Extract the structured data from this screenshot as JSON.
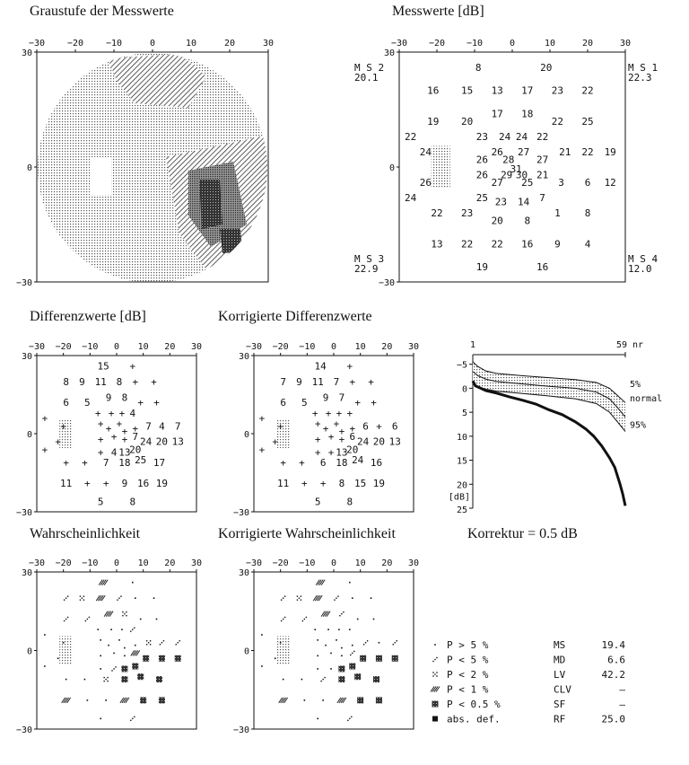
{
  "titles": {
    "grayscale": "Graustufe der Messwerte",
    "values": "Messwerte [dB]",
    "diff": "Differenzwerte [dB]",
    "corr_diff": "Korrigierte Differenzwerte",
    "prob": "Wahrscheinlichkeit",
    "corr_prob": "Korrigierte Wahrscheinlichkeit",
    "korrektur": "Korrektur = 0.5 dB"
  },
  "axis_ticks": [
    "−30",
    "−20",
    "−10",
    "0",
    "10",
    "20",
    "30"
  ],
  "axis_y_ticks": [
    "30",
    "0",
    "−30"
  ],
  "quadrants": {
    "ms1": {
      "label": "M S 1",
      "value": "22.3"
    },
    "ms2": {
      "label": "M S 2",
      "value": "20.1"
    },
    "ms3": {
      "label": "M S 3",
      "value": "22.9"
    },
    "ms4": {
      "label": "M S 4",
      "value": "12.0"
    }
  },
  "measured_values": [
    {
      "x": -9,
      "y": 26,
      "v": "8"
    },
    {
      "x": 9,
      "y": 26,
      "v": "20"
    },
    {
      "x": -21,
      "y": 20,
      "v": "16"
    },
    {
      "x": -12,
      "y": 20,
      "v": "15"
    },
    {
      "x": -4,
      "y": 20,
      "v": "13"
    },
    {
      "x": 4,
      "y": 20,
      "v": "17"
    },
    {
      "x": 12,
      "y": 20,
      "v": "23"
    },
    {
      "x": 20,
      "y": 20,
      "v": "22"
    },
    {
      "x": -21,
      "y": 12,
      "v": "19"
    },
    {
      "x": -12,
      "y": 12,
      "v": "20"
    },
    {
      "x": -4,
      "y": 14,
      "v": "17"
    },
    {
      "x": 4,
      "y": 14,
      "v": "18"
    },
    {
      "x": 12,
      "y": 12,
      "v": "22"
    },
    {
      "x": 20,
      "y": 12,
      "v": "25"
    },
    {
      "x": -27,
      "y": 8,
      "v": "22"
    },
    {
      "x": -8,
      "y": 8,
      "v": "23"
    },
    {
      "x": -2,
      "y": 8,
      "v": "24"
    },
    {
      "x": 2.5,
      "y": 8,
      "v": "24"
    },
    {
      "x": 8,
      "y": 8,
      "v": "22"
    },
    {
      "x": -23,
      "y": 4,
      "v": "24"
    },
    {
      "x": -8,
      "y": 2,
      "v": "26"
    },
    {
      "x": -4,
      "y": 4,
      "v": "26"
    },
    {
      "x": -1,
      "y": 2,
      "v": "28"
    },
    {
      "x": 3,
      "y": 4,
      "v": "27"
    },
    {
      "x": 8,
      "y": 2,
      "v": "27"
    },
    {
      "x": 14,
      "y": 4,
      "v": "21"
    },
    {
      "x": 20,
      "y": 4,
      "v": "22"
    },
    {
      "x": 26,
      "y": 4,
      "v": "19"
    },
    {
      "x": 1,
      "y": -0.5,
      "v": "31"
    },
    {
      "x": -23,
      "y": -4,
      "v": "26"
    },
    {
      "x": -8,
      "y": -2,
      "v": "26"
    },
    {
      "x": -1.5,
      "y": -2,
      "v": "29"
    },
    {
      "x": 2.5,
      "y": -2,
      "v": "30"
    },
    {
      "x": 8,
      "y": -2,
      "v": "21"
    },
    {
      "x": -4,
      "y": -4,
      "v": "27"
    },
    {
      "x": 4,
      "y": -4,
      "v": "25"
    },
    {
      "x": 13,
      "y": -4,
      "v": "3"
    },
    {
      "x": 20,
      "y": -4,
      "v": "6"
    },
    {
      "x": 26,
      "y": -4,
      "v": "12"
    },
    {
      "x": -27,
      "y": -8,
      "v": "24"
    },
    {
      "x": -8,
      "y": -8,
      "v": "25"
    },
    {
      "x": -3,
      "y": -9,
      "v": "23"
    },
    {
      "x": 3,
      "y": -9,
      "v": "14"
    },
    {
      "x": 8,
      "y": -8,
      "v": "7"
    },
    {
      "x": -20,
      "y": -12,
      "v": "22"
    },
    {
      "x": -12,
      "y": -12,
      "v": "23"
    },
    {
      "x": -4,
      "y": -14,
      "v": "20"
    },
    {
      "x": 4,
      "y": -14,
      "v": "8"
    },
    {
      "x": 12,
      "y": -12,
      "v": "1"
    },
    {
      "x": 20,
      "y": -12,
      "v": "8"
    },
    {
      "x": -20,
      "y": -20,
      "v": "13"
    },
    {
      "x": -12,
      "y": -20,
      "v": "22"
    },
    {
      "x": -4,
      "y": -20,
      "v": "22"
    },
    {
      "x": 4,
      "y": -20,
      "v": "16"
    },
    {
      "x": 12,
      "y": -20,
      "v": "9"
    },
    {
      "x": 20,
      "y": -20,
      "v": "4"
    },
    {
      "x": -8,
      "y": -26,
      "v": "19"
    },
    {
      "x": 8,
      "y": -26,
      "v": "16"
    }
  ],
  "diff_values": [
    {
      "x": -5,
      "y": 26,
      "v": "15"
    },
    {
      "x": 6,
      "y": 26,
      "v": "+"
    },
    {
      "x": -19,
      "y": 20,
      "v": "8"
    },
    {
      "x": -13,
      "y": 20,
      "v": "9"
    },
    {
      "x": -6,
      "y": 20,
      "v": "11"
    },
    {
      "x": 1,
      "y": 20,
      "v": "8"
    },
    {
      "x": 7,
      "y": 20,
      "v": "+"
    },
    {
      "x": 14,
      "y": 20,
      "v": "+"
    },
    {
      "x": -19,
      "y": 12,
      "v": "6"
    },
    {
      "x": -11,
      "y": 12,
      "v": "5"
    },
    {
      "x": -3,
      "y": 14,
      "v": "9"
    },
    {
      "x": 3,
      "y": 14,
      "v": "8"
    },
    {
      "x": 9,
      "y": 12,
      "v": "+"
    },
    {
      "x": 15,
      "y": 12,
      "v": "+"
    },
    {
      "x": -27,
      "y": 6,
      "v": "+"
    },
    {
      "x": -7,
      "y": 8,
      "v": "+"
    },
    {
      "x": -2,
      "y": 8,
      "v": "+"
    },
    {
      "x": 2,
      "y": 8,
      "v": "+"
    },
    {
      "x": 6,
      "y": 8,
      "v": "4"
    },
    {
      "x": -20,
      "y": 3,
      "v": "+"
    },
    {
      "x": -6,
      "y": 4,
      "v": "+"
    },
    {
      "x": -3,
      "y": 2,
      "v": "+"
    },
    {
      "x": 1,
      "y": 4,
      "v": "+"
    },
    {
      "x": 3,
      "y": 1,
      "v": "+"
    },
    {
      "x": 7,
      "y": 2,
      "v": "+"
    },
    {
      "x": 12,
      "y": 3,
      "v": "7"
    },
    {
      "x": 17,
      "y": 3,
      "v": "4"
    },
    {
      "x": 23,
      "y": 3,
      "v": "7"
    },
    {
      "x": -22,
      "y": -3,
      "v": "+"
    },
    {
      "x": -6,
      "y": -2,
      "v": "+"
    },
    {
      "x": -1,
      "y": -1,
      "v": "+"
    },
    {
      "x": 3,
      "y": -2,
      "v": "+"
    },
    {
      "x": 7,
      "y": -1,
      "v": "7"
    },
    {
      "x": 11,
      "y": -3,
      "v": "24"
    },
    {
      "x": 17,
      "y": -3,
      "v": "20"
    },
    {
      "x": 23,
      "y": -3,
      "v": "13"
    },
    {
      "x": -27,
      "y": -6,
      "v": "+"
    },
    {
      "x": -6,
      "y": -7,
      "v": "+"
    },
    {
      "x": -1,
      "y": -7,
      "v": "4"
    },
    {
      "x": 3,
      "y": -7,
      "v": "13"
    },
    {
      "x": 7,
      "y": -6,
      "v": "20"
    },
    {
      "x": -19,
      "y": -11,
      "v": "+"
    },
    {
      "x": -12,
      "y": -11,
      "v": "+"
    },
    {
      "x": -4,
      "y": -11,
      "v": "7"
    },
    {
      "x": 3,
      "y": -11,
      "v": "18"
    },
    {
      "x": 9,
      "y": -10,
      "v": "25"
    },
    {
      "x": 16,
      "y": -11,
      "v": "17"
    },
    {
      "x": -19,
      "y": -19,
      "v": "11"
    },
    {
      "x": -11,
      "y": -19,
      "v": "+"
    },
    {
      "x": -4,
      "y": -19,
      "v": "+"
    },
    {
      "x": 3,
      "y": -19,
      "v": "9"
    },
    {
      "x": 10,
      "y": -19,
      "v": "16"
    },
    {
      "x": 17,
      "y": -19,
      "v": "19"
    },
    {
      "x": -6,
      "y": -26,
      "v": "5"
    },
    {
      "x": 6,
      "y": -26,
      "v": "8"
    }
  ],
  "corr_diff_values": [
    {
      "x": -5,
      "y": 26,
      "v": "14"
    },
    {
      "x": 6,
      "y": 26,
      "v": "+"
    },
    {
      "x": -19,
      "y": 20,
      "v": "7"
    },
    {
      "x": -13,
      "y": 20,
      "v": "9"
    },
    {
      "x": -6,
      "y": 20,
      "v": "11"
    },
    {
      "x": 1,
      "y": 20,
      "v": "7"
    },
    {
      "x": 7,
      "y": 20,
      "v": "+"
    },
    {
      "x": 14,
      "y": 20,
      "v": "+"
    },
    {
      "x": -19,
      "y": 12,
      "v": "6"
    },
    {
      "x": -11,
      "y": 12,
      "v": "5"
    },
    {
      "x": -3,
      "y": 14,
      "v": "9"
    },
    {
      "x": 3,
      "y": 14,
      "v": "7"
    },
    {
      "x": 9,
      "y": 12,
      "v": "+"
    },
    {
      "x": 15,
      "y": 12,
      "v": "+"
    },
    {
      "x": -27,
      "y": 6,
      "v": "+"
    },
    {
      "x": -7,
      "y": 8,
      "v": "+"
    },
    {
      "x": -2,
      "y": 8,
      "v": "+"
    },
    {
      "x": 2,
      "y": 8,
      "v": "+"
    },
    {
      "x": 6,
      "y": 8,
      "v": "+"
    },
    {
      "x": -20,
      "y": 3,
      "v": "+"
    },
    {
      "x": -6,
      "y": 4,
      "v": "+"
    },
    {
      "x": -3,
      "y": 2,
      "v": "+"
    },
    {
      "x": 1,
      "y": 4,
      "v": "+"
    },
    {
      "x": 3,
      "y": 1,
      "v": "+"
    },
    {
      "x": 7,
      "y": 2,
      "v": "+"
    },
    {
      "x": 12,
      "y": 3,
      "v": "6"
    },
    {
      "x": 17,
      "y": 3,
      "v": "+"
    },
    {
      "x": 23,
      "y": 3,
      "v": "6"
    },
    {
      "x": -22,
      "y": -3,
      "v": "+"
    },
    {
      "x": -6,
      "y": -2,
      "v": "+"
    },
    {
      "x": -1,
      "y": -1,
      "v": "+"
    },
    {
      "x": 3,
      "y": -2,
      "v": "+"
    },
    {
      "x": 7,
      "y": -1,
      "v": "6"
    },
    {
      "x": 11,
      "y": -3,
      "v": "24"
    },
    {
      "x": 17,
      "y": -3,
      "v": "20"
    },
    {
      "x": 23,
      "y": -3,
      "v": "13"
    },
    {
      "x": -27,
      "y": -6,
      "v": "+"
    },
    {
      "x": -6,
      "y": -7,
      "v": "+"
    },
    {
      "x": -1,
      "y": -7,
      "v": "+"
    },
    {
      "x": 3,
      "y": -7,
      "v": "13"
    },
    {
      "x": 7,
      "y": -6,
      "v": "20"
    },
    {
      "x": -19,
      "y": -11,
      "v": "+"
    },
    {
      "x": -12,
      "y": -11,
      "v": "+"
    },
    {
      "x": -4,
      "y": -11,
      "v": "6"
    },
    {
      "x": 3,
      "y": -11,
      "v": "18"
    },
    {
      "x": 9,
      "y": -10,
      "v": "24"
    },
    {
      "x": 16,
      "y": -11,
      "v": "16"
    },
    {
      "x": -19,
      "y": -19,
      "v": "11"
    },
    {
      "x": -11,
      "y": -19,
      "v": "+"
    },
    {
      "x": -4,
      "y": -19,
      "v": "+"
    },
    {
      "x": 3,
      "y": -19,
      "v": "8"
    },
    {
      "x": 10,
      "y": -19,
      "v": "15"
    },
    {
      "x": 17,
      "y": -19,
      "v": "19"
    },
    {
      "x": -6,
      "y": -26,
      "v": "5"
    },
    {
      "x": 6,
      "y": -26,
      "v": "8"
    }
  ],
  "prob_symbols": [
    {
      "x": -5,
      "y": 26,
      "s": 3
    },
    {
      "x": 6,
      "y": 26,
      "s": 0
    },
    {
      "x": -19,
      "y": 20,
      "s": 1
    },
    {
      "x": -13,
      "y": 20,
      "s": 2
    },
    {
      "x": -6,
      "y": 20,
      "s": 3
    },
    {
      "x": 1,
      "y": 20,
      "s": 1
    },
    {
      "x": 7,
      "y": 20,
      "s": 0
    },
    {
      "x": 14,
      "y": 20,
      "s": 0
    },
    {
      "x": -19,
      "y": 12,
      "s": 1
    },
    {
      "x": -11,
      "y": 12,
      "s": 1
    },
    {
      "x": -3,
      "y": 14,
      "s": 3
    },
    {
      "x": 3,
      "y": 14,
      "s": 2
    },
    {
      "x": 9,
      "y": 12,
      "s": 0
    },
    {
      "x": 15,
      "y": 12,
      "s": 0
    },
    {
      "x": -27,
      "y": 6,
      "s": 0
    },
    {
      "x": -7,
      "y": 8,
      "s": 0
    },
    {
      "x": -2,
      "y": 8,
      "s": 0
    },
    {
      "x": 2,
      "y": 8,
      "s": 0
    },
    {
      "x": 6,
      "y": 8,
      "s": 1
    },
    {
      "x": -20,
      "y": 3,
      "s": 0
    },
    {
      "x": -6,
      "y": 4,
      "s": 0
    },
    {
      "x": -3,
      "y": 2,
      "s": 0
    },
    {
      "x": 1,
      "y": 4,
      "s": 0
    },
    {
      "x": 3,
      "y": 1,
      "s": 0
    },
    {
      "x": 7,
      "y": 2,
      "s": 0
    },
    {
      "x": 12,
      "y": 3,
      "s": 2
    },
    {
      "x": 17,
      "y": 3,
      "s": 1
    },
    {
      "x": 23,
      "y": 3,
      "s": 1
    },
    {
      "x": -22,
      "y": -3,
      "s": 0
    },
    {
      "x": -6,
      "y": -2,
      "s": 0
    },
    {
      "x": -1,
      "y": -1,
      "s": 0
    },
    {
      "x": 3,
      "y": -2,
      "s": 0
    },
    {
      "x": 7,
      "y": -1,
      "s": 3
    },
    {
      "x": 11,
      "y": -3,
      "s": 4
    },
    {
      "x": 17,
      "y": -3,
      "s": 4
    },
    {
      "x": 23,
      "y": -3,
      "s": 4
    },
    {
      "x": -27,
      "y": -6,
      "s": 0
    },
    {
      "x": -6,
      "y": -7,
      "s": 0
    },
    {
      "x": -1,
      "y": -7,
      "s": 1
    },
    {
      "x": 3,
      "y": -7,
      "s": 4
    },
    {
      "x": 7,
      "y": -6,
      "s": 4
    },
    {
      "x": -19,
      "y": -11,
      "s": 0
    },
    {
      "x": -12,
      "y": -11,
      "s": 0
    },
    {
      "x": -4,
      "y": -11,
      "s": 2
    },
    {
      "x": 3,
      "y": -11,
      "s": 4
    },
    {
      "x": 9,
      "y": -10,
      "s": 4
    },
    {
      "x": 16,
      "y": -11,
      "s": 4
    },
    {
      "x": -19,
      "y": -19,
      "s": 3
    },
    {
      "x": -11,
      "y": -19,
      "s": 0
    },
    {
      "x": -4,
      "y": -19,
      "s": 0
    },
    {
      "x": 3,
      "y": -19,
      "s": 3
    },
    {
      "x": 10,
      "y": -19,
      "s": 4
    },
    {
      "x": 17,
      "y": -19,
      "s": 4
    },
    {
      "x": -6,
      "y": -26,
      "s": 0
    },
    {
      "x": 6,
      "y": -26,
      "s": 1
    }
  ],
  "corr_prob_symbols": [
    {
      "x": -5,
      "y": 26,
      "s": 3
    },
    {
      "x": 6,
      "y": 26,
      "s": 0
    },
    {
      "x": -19,
      "y": 20,
      "s": 1
    },
    {
      "x": -13,
      "y": 20,
      "s": 2
    },
    {
      "x": -6,
      "y": 20,
      "s": 3
    },
    {
      "x": 1,
      "y": 20,
      "s": 1
    },
    {
      "x": 7,
      "y": 20,
      "s": 0
    },
    {
      "x": 14,
      "y": 20,
      "s": 0
    },
    {
      "x": -19,
      "y": 12,
      "s": 1
    },
    {
      "x": -11,
      "y": 12,
      "s": 1
    },
    {
      "x": -3,
      "y": 14,
      "s": 3
    },
    {
      "x": 3,
      "y": 14,
      "s": 1
    },
    {
      "x": 9,
      "y": 12,
      "s": 0
    },
    {
      "x": 15,
      "y": 12,
      "s": 0
    },
    {
      "x": -27,
      "y": 6,
      "s": 0
    },
    {
      "x": -7,
      "y": 8,
      "s": 0
    },
    {
      "x": -2,
      "y": 8,
      "s": 0
    },
    {
      "x": 2,
      "y": 8,
      "s": 0
    },
    {
      "x": 6,
      "y": 8,
      "s": 0
    },
    {
      "x": -20,
      "y": 3,
      "s": 0
    },
    {
      "x": -6,
      "y": 4,
      "s": 0
    },
    {
      "x": -3,
      "y": 2,
      "s": 0
    },
    {
      "x": 1,
      "y": 4,
      "s": 0
    },
    {
      "x": 3,
      "y": 1,
      "s": 0
    },
    {
      "x": 7,
      "y": 2,
      "s": 0
    },
    {
      "x": 12,
      "y": 3,
      "s": 1
    },
    {
      "x": 17,
      "y": 3,
      "s": 0
    },
    {
      "x": 23,
      "y": 3,
      "s": 1
    },
    {
      "x": -22,
      "y": -3,
      "s": 0
    },
    {
      "x": -6,
      "y": -2,
      "s": 0
    },
    {
      "x": -1,
      "y": -1,
      "s": 0
    },
    {
      "x": 3,
      "y": -2,
      "s": 0
    },
    {
      "x": 7,
      "y": -1,
      "s": 1
    },
    {
      "x": 11,
      "y": -3,
      "s": 4
    },
    {
      "x": 17,
      "y": -3,
      "s": 4
    },
    {
      "x": 23,
      "y": -3,
      "s": 4
    },
    {
      "x": -27,
      "y": -6,
      "s": 0
    },
    {
      "x": -6,
      "y": -7,
      "s": 0
    },
    {
      "x": -1,
      "y": -7,
      "s": 0
    },
    {
      "x": 3,
      "y": -7,
      "s": 4
    },
    {
      "x": 7,
      "y": -6,
      "s": 4
    },
    {
      "x": -19,
      "y": -11,
      "s": 0
    },
    {
      "x": -12,
      "y": -11,
      "s": 0
    },
    {
      "x": -4,
      "y": -11,
      "s": 1
    },
    {
      "x": 3,
      "y": -11,
      "s": 4
    },
    {
      "x": 9,
      "y": -10,
      "s": 4
    },
    {
      "x": 16,
      "y": -11,
      "s": 4
    },
    {
      "x": -19,
      "y": -19,
      "s": 3
    },
    {
      "x": -11,
      "y": -19,
      "s": 0
    },
    {
      "x": -4,
      "y": -19,
      "s": 0
    },
    {
      "x": 3,
      "y": -19,
      "s": 3
    },
    {
      "x": 10,
      "y": -19,
      "s": 4
    },
    {
      "x": 17,
      "y": -19,
      "s": 4
    },
    {
      "x": -6,
      "y": -26,
      "s": 0
    },
    {
      "x": 6,
      "y": -26,
      "s": 1
    }
  ],
  "legend": [
    {
      "sym": 0,
      "label": "P > 5 %"
    },
    {
      "sym": 1,
      "label": "P < 5 %"
    },
    {
      "sym": 2,
      "label": "P < 2 %"
    },
    {
      "sym": 3,
      "label": "P < 1 %"
    },
    {
      "sym": 4,
      "label": "P < 0.5 %"
    },
    {
      "sym": 5,
      "label": "abs. def."
    }
  ],
  "indices": [
    {
      "k": "MS",
      "v": "19.4"
    },
    {
      "k": "MD",
      "v": "6.6"
    },
    {
      "k": "LV",
      "v": "42.2"
    },
    {
      "k": "CLV",
      "v": "—"
    },
    {
      "k": "SF",
      "v": "—"
    },
    {
      "k": "RF",
      "v": "25.0"
    }
  ],
  "chart_data": {
    "type": "line",
    "title": "",
    "x_start_label": "1",
    "x_end_label": "59",
    "x_unit": "nr",
    "ylabel": "[dB]",
    "ylim": [
      -7,
      25
    ],
    "yticks": [
      "−5",
      "0",
      "5",
      "10",
      "15",
      "20",
      "25"
    ],
    "ytick_values": [
      -5,
      0,
      5,
      10,
      15,
      20,
      25
    ],
    "series": [
      {
        "name": "5%",
        "x": [
          1,
          3,
          6,
          10,
          20,
          30,
          40,
          48,
          53,
          56,
          59
        ],
        "y": [
          -5.5,
          -4.5,
          -3.6,
          -3.1,
          -2.6,
          -2.2,
          -1.8,
          -1.2,
          0,
          1.5,
          3.0
        ]
      },
      {
        "name": "normal",
        "x": [
          1,
          3,
          6,
          10,
          20,
          30,
          40,
          48,
          53,
          56,
          59
        ],
        "y": [
          -3.5,
          -2.6,
          -1.9,
          -1.4,
          -0.9,
          -0.4,
          0,
          0.8,
          2.2,
          4,
          6
        ]
      },
      {
        "name": "95%",
        "x": [
          1,
          3,
          6,
          10,
          20,
          30,
          40,
          48,
          53,
          56,
          59
        ],
        "y": [
          -1.2,
          -0.3,
          0.2,
          0.6,
          1.1,
          1.6,
          2.2,
          3.2,
          5,
          7,
          9
        ]
      },
      {
        "name": "",
        "x": [
          1,
          2,
          4,
          6,
          10,
          15,
          20,
          25,
          30,
          35,
          40,
          44,
          47,
          50,
          53,
          55,
          57,
          58,
          59
        ],
        "y": [
          -1.5,
          -0.5,
          0,
          0.5,
          1,
          1.8,
          2.5,
          3.3,
          4.5,
          5.5,
          7,
          8.5,
          10,
          12,
          14.5,
          16.5,
          20,
          22,
          24.5
        ]
      }
    ]
  }
}
